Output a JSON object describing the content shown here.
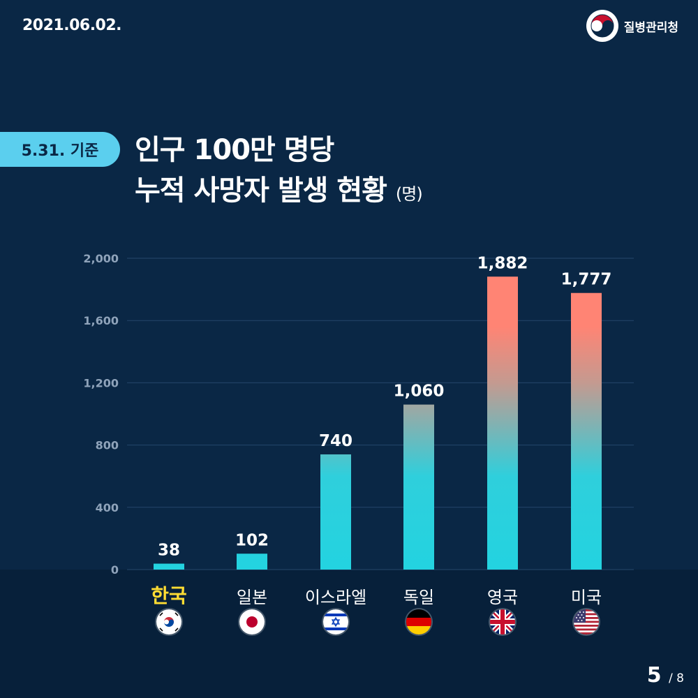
{
  "header": {
    "date": "2021.06.02.",
    "agency": "질병관리청"
  },
  "badge": "5.31. 기준",
  "title": {
    "line1": "인구 100만 명당",
    "line2": "누적 사망자 발생 현황",
    "unit": "(명)"
  },
  "colors": {
    "background": "#0a2745",
    "bar_bottom": "#23d3e0",
    "bar_top": "#ff8474",
    "badge": "#5bcfee",
    "highlight": "#ffdd33"
  },
  "chart_data": {
    "type": "bar",
    "categories": [
      "한국",
      "일본",
      "이스라엘",
      "독일",
      "영국",
      "미국"
    ],
    "values": [
      38,
      102,
      740,
      1060,
      1882,
      1777
    ],
    "value_labels": [
      "38",
      "102",
      "740",
      "1,060",
      "1,882",
      "1,777"
    ],
    "yticks": [
      "0",
      "400",
      "800",
      "1,200",
      "1,600",
      "2,000"
    ],
    "ylim": [
      0,
      2000
    ],
    "grid": true,
    "highlight_category": "한국",
    "flags": [
      "korea-flag-icon",
      "japan-flag-icon",
      "israel-flag-icon",
      "germany-flag-icon",
      "uk-flag-icon",
      "usa-flag-icon"
    ]
  },
  "footer": {
    "page": "5",
    "total": "/ 8"
  }
}
